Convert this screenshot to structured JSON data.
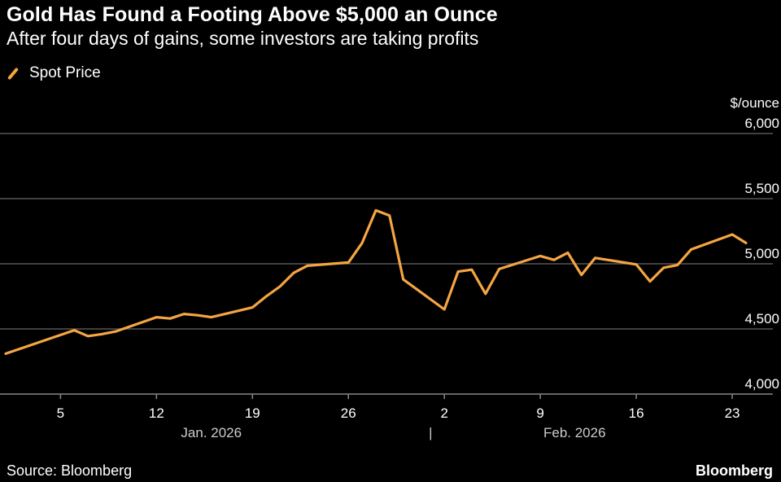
{
  "title": "Gold Has Found a Footing Above $5,000 an Ounce",
  "subtitle": "After four days of gains, some investors are taking profits",
  "legend": {
    "label": "Spot Price",
    "color": "#f5a542"
  },
  "source": "Source: Bloomberg",
  "brand": "Bloomberg",
  "chart_data": {
    "type": "line",
    "unit_label": "$/ounce",
    "ylim": [
      4000,
      6000
    ],
    "y_ticks": [
      4000,
      4500,
      5000,
      5500,
      6000
    ],
    "y_tick_labels": [
      "4,000",
      "4,500",
      "5,000",
      "5,500",
      "6,000"
    ],
    "xlim_day_index": [
      1,
      55.5
    ],
    "x_ticks": [
      {
        "label": "5",
        "day_index": 5
      },
      {
        "label": "12",
        "day_index": 12
      },
      {
        "label": "19",
        "day_index": 19
      },
      {
        "label": "26",
        "day_index": 26
      },
      {
        "label": "2",
        "day_index": 33
      },
      {
        "label": "9",
        "day_index": 40
      },
      {
        "label": "16",
        "day_index": 47
      },
      {
        "label": "23",
        "day_index": 54
      }
    ],
    "month_labels": [
      {
        "label": "Jan. 2026",
        "day_index": 16
      },
      {
        "label": "Feb. 2026",
        "day_index": 42.5
      }
    ],
    "month_separator": {
      "label": "|",
      "day_index": 32
    },
    "series": [
      {
        "name": "Spot Price",
        "color": "#f5a542",
        "points": [
          [
            1,
            4310
          ],
          [
            6,
            4490
          ],
          [
            7,
            4445
          ],
          [
            8,
            4460
          ],
          [
            9,
            4480
          ],
          [
            12,
            4590
          ],
          [
            13,
            4580
          ],
          [
            14,
            4615
          ],
          [
            15,
            4605
          ],
          [
            16,
            4590
          ],
          [
            19,
            4665
          ],
          [
            20,
            4750
          ],
          [
            21,
            4825
          ],
          [
            22,
            4930
          ],
          [
            23,
            4985
          ],
          [
            26,
            5010
          ],
          [
            27,
            5160
          ],
          [
            28,
            5410
          ],
          [
            29,
            5370
          ],
          [
            30,
            4880
          ],
          [
            33,
            4650
          ],
          [
            34,
            4940
          ],
          [
            35,
            4955
          ],
          [
            36,
            4770
          ],
          [
            37,
            4960
          ],
          [
            40,
            5060
          ],
          [
            41,
            5030
          ],
          [
            42,
            5085
          ],
          [
            43,
            4915
          ],
          [
            44,
            5045
          ],
          [
            47,
            4995
          ],
          [
            48,
            4865
          ],
          [
            49,
            4970
          ],
          [
            50,
            4990
          ],
          [
            51,
            5110
          ],
          [
            54,
            5225
          ],
          [
            55,
            5160
          ]
        ]
      }
    ]
  }
}
